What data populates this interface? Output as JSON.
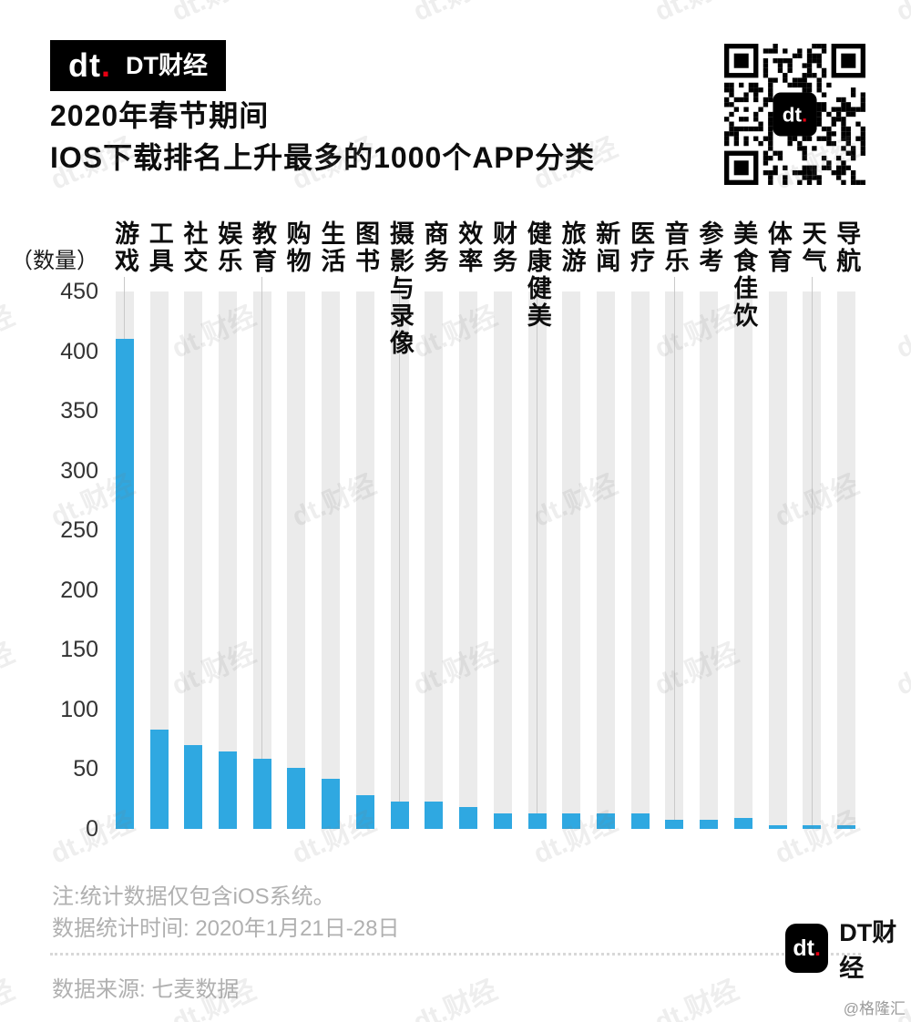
{
  "header": {
    "logo_dt": "dt",
    "logo_dot": ".",
    "logo_brand": "DT财经",
    "title_line1": "2020年春节期间",
    "title_line2": "IOS下载排名上升最多的1000个APP分类"
  },
  "chart_data": {
    "type": "bar",
    "title": "2020年春节期间 IOS下载排名上升最多的1000个APP分类",
    "unit_label": "（数量）",
    "xlabel": "",
    "ylabel": "数量",
    "categories": [
      "游戏",
      "工具",
      "社交",
      "娱乐",
      "教育",
      "购物",
      "生活",
      "图书",
      "摄影与录像",
      "商务",
      "效率",
      "财务",
      "健康健美",
      "旅游",
      "新闻",
      "医疗",
      "音乐",
      "参考",
      "美食佳饮",
      "体育",
      "天气",
      "导航"
    ],
    "values": [
      410,
      83,
      70,
      65,
      59,
      51,
      42,
      28,
      23,
      23,
      18,
      13,
      13,
      13,
      13,
      13,
      8,
      8,
      9,
      3,
      3,
      3
    ],
    "ylim": [
      0,
      450
    ],
    "yticks": [
      450,
      400,
      350,
      300,
      250,
      200,
      150,
      100,
      50,
      0
    ],
    "grid": "vertical-bands",
    "legend": "none",
    "bar_color": "#2FA8E1",
    "band_color": "#EBEBEB",
    "gridline_every": 4
  },
  "footer": {
    "note1": "注:统计数据仅包含iOS系统。",
    "note2": "数据统计时间: 2020年1月21日-28日",
    "source": "数据来源: 七麦数据",
    "logo_dt": "dt",
    "logo_dot": ".",
    "brand": "DT财经"
  },
  "watermark": {
    "text": "dt.财经",
    "corner": "@格隆汇"
  }
}
